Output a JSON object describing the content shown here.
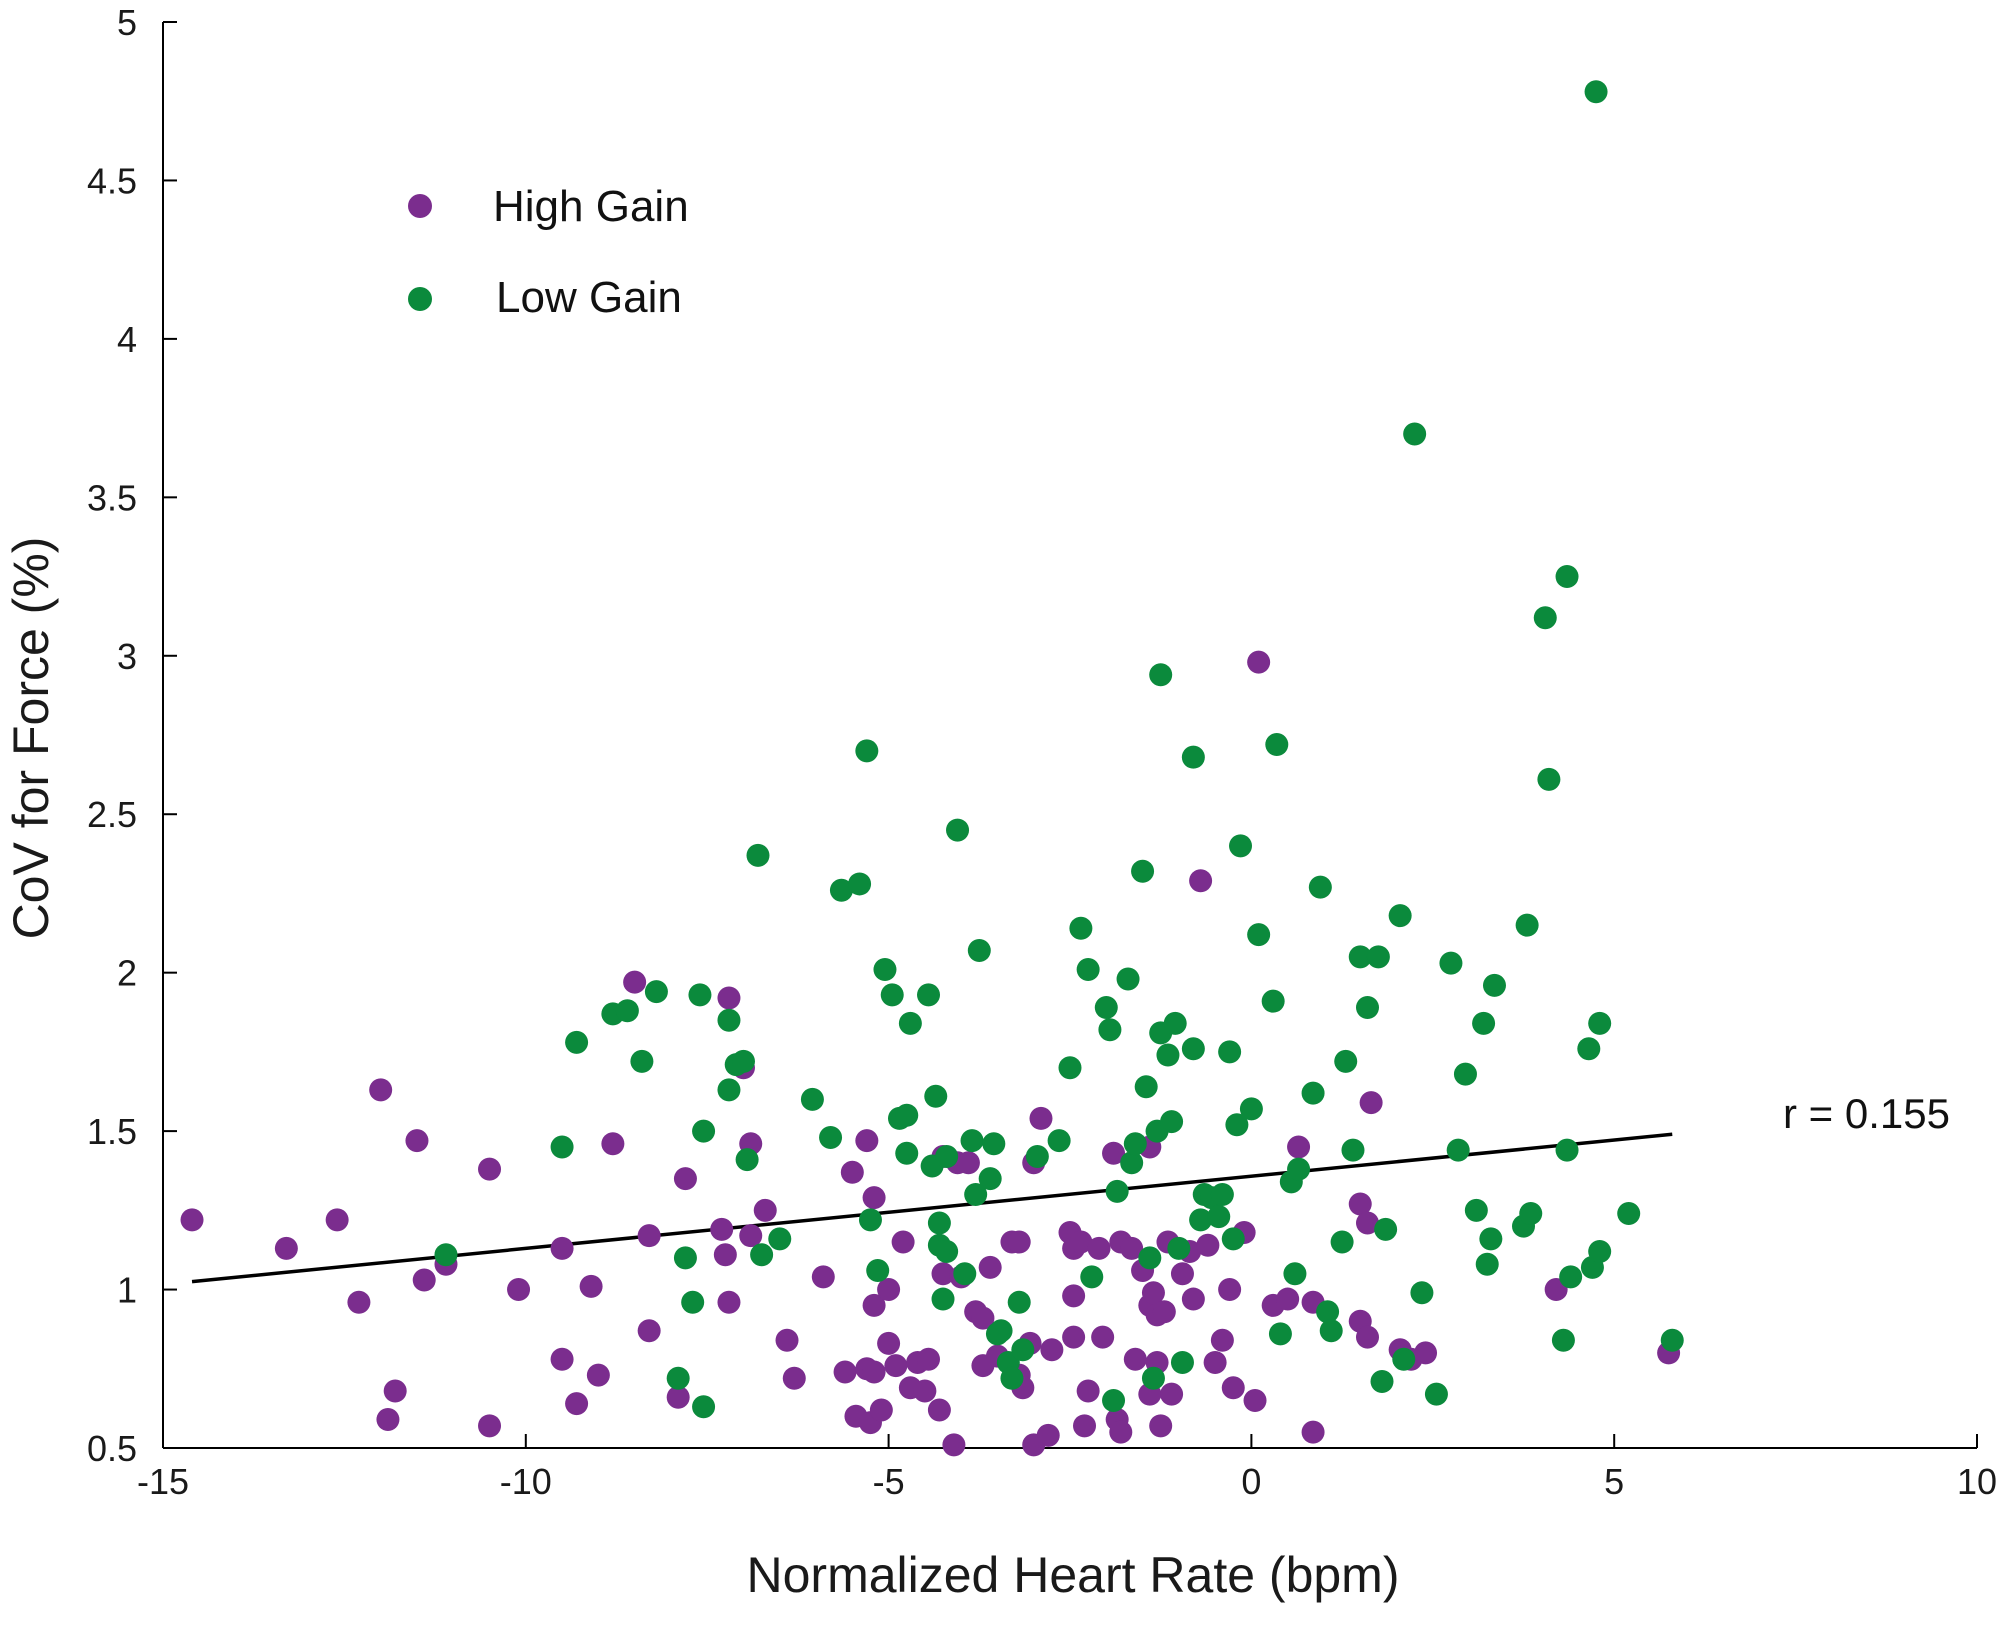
{
  "chart_data": {
    "type": "scatter",
    "title": "",
    "xlabel": "Normalized Heart Rate (bpm)",
    "ylabel": "CoV for Force (%)",
    "xlim": [
      -15,
      10
    ],
    "ylim": [
      0.5,
      5
    ],
    "xticks": [
      -15,
      -10,
      -5,
      0,
      5,
      10
    ],
    "xtick_labels": [
      "-15",
      "-10",
      "-5",
      "0",
      "5",
      "10"
    ],
    "yticks": [
      0.5,
      1,
      1.5,
      2,
      2.5,
      3,
      3.5,
      4,
      4.5,
      5
    ],
    "ytick_labels": [
      "0.5",
      "1",
      "1.5",
      "2",
      "2.5",
      "3",
      "3.5",
      "4",
      "4.5",
      "5"
    ],
    "grid": false,
    "legend": {
      "position": "top-left"
    },
    "annotation": "r = 0.155",
    "fit_line": {
      "x": [
        -14.6,
        5.8
      ],
      "y": [
        1.025,
        1.49
      ],
      "color": "#000000"
    },
    "series": [
      {
        "name": "High Gain",
        "color": "#7b2d8e",
        "points": [
          [
            -14.6,
            1.22
          ],
          [
            -13.3,
            1.13
          ],
          [
            -12.6,
            1.22
          ],
          [
            -12.3,
            0.96
          ],
          [
            -12,
            1.63
          ],
          [
            -11.9,
            0.59
          ],
          [
            -11.8,
            0.68
          ],
          [
            -11.5,
            1.47
          ],
          [
            -11.4,
            1.03
          ],
          [
            -11.1,
            1.08
          ],
          [
            -10.5,
            1.38
          ],
          [
            -10.5,
            0.57
          ],
          [
            -10.1,
            1.0
          ],
          [
            -9.5,
            1.13
          ],
          [
            -9.5,
            0.78
          ],
          [
            -9.3,
            0.64
          ],
          [
            -9.1,
            1.01
          ],
          [
            -9.0,
            0.73
          ],
          [
            -8.8,
            1.46
          ],
          [
            -8.5,
            1.97
          ],
          [
            -8.3,
            1.17
          ],
          [
            -8.3,
            0.87
          ],
          [
            -7.9,
            0.66
          ],
          [
            -7.8,
            1.35
          ],
          [
            -7.3,
            1.19
          ],
          [
            -7.25,
            1.11
          ],
          [
            -7.2,
            0.96
          ],
          [
            -7.2,
            1.92
          ],
          [
            -7.0,
            1.7
          ],
          [
            -6.9,
            1.46
          ],
          [
            -6.9,
            1.17
          ],
          [
            -6.7,
            1.25
          ],
          [
            -6.4,
            0.84
          ],
          [
            -6.3,
            0.72
          ],
          [
            -5.9,
            1.04
          ],
          [
            -5.6,
            0.74
          ],
          [
            -5.5,
            1.37
          ],
          [
            -5.45,
            0.6
          ],
          [
            -5.3,
            1.47
          ],
          [
            -5.3,
            0.75
          ],
          [
            -5.25,
            0.58
          ],
          [
            -5.2,
            1.29
          ],
          [
            -5.2,
            0.95
          ],
          [
            -5.2,
            0.74
          ],
          [
            -5.1,
            0.62
          ],
          [
            -5.0,
            1.0
          ],
          [
            -5.0,
            0.83
          ],
          [
            -4.9,
            0.76
          ],
          [
            -4.8,
            1.15
          ],
          [
            -4.7,
            0.69
          ],
          [
            -4.6,
            0.77
          ],
          [
            -4.5,
            0.68
          ],
          [
            -4.45,
            0.78
          ],
          [
            -4.3,
            0.62
          ],
          [
            -4.25,
            1.05
          ],
          [
            -4.25,
            1.42
          ],
          [
            -4.1,
            0.51
          ],
          [
            -4.05,
            1.4
          ],
          [
            -4.0,
            1.04
          ],
          [
            -3.9,
            1.4
          ],
          [
            -3.8,
            0.93
          ],
          [
            -3.7,
            0.76
          ],
          [
            -3.7,
            0.91
          ],
          [
            -3.6,
            1.07
          ],
          [
            -3.5,
            0.79
          ],
          [
            -3.3,
            1.15
          ],
          [
            -3.2,
            1.15
          ],
          [
            -3.2,
            0.73
          ],
          [
            -3.15,
            0.69
          ],
          [
            -3.05,
            0.83
          ],
          [
            -3.0,
            1.4
          ],
          [
            -3.0,
            0.51
          ],
          [
            -2.9,
            1.54
          ],
          [
            -2.8,
            0.54
          ],
          [
            -2.75,
            0.81
          ],
          [
            -2.5,
            1.18
          ],
          [
            -2.45,
            1.13
          ],
          [
            -2.45,
            0.98
          ],
          [
            -2.45,
            0.85
          ],
          [
            -2.35,
            1.15
          ],
          [
            -2.3,
            0.57
          ],
          [
            -2.25,
            0.68
          ],
          [
            -2.1,
            1.13
          ],
          [
            -2.05,
            0.85
          ],
          [
            -1.9,
            1.43
          ],
          [
            -1.85,
            0.59
          ],
          [
            -1.8,
            0.55
          ],
          [
            -1.8,
            1.15
          ],
          [
            -1.65,
            1.13
          ],
          [
            -1.6,
            0.78
          ],
          [
            -1.5,
            1.06
          ],
          [
            -1.4,
            1.45
          ],
          [
            -1.4,
            0.95
          ],
          [
            -1.4,
            0.67
          ],
          [
            -1.35,
            0.99
          ],
          [
            -1.3,
            0.77
          ],
          [
            -1.3,
            0.92
          ],
          [
            -1.25,
            0.57
          ],
          [
            -1.2,
            0.93
          ],
          [
            -1.15,
            1.15
          ],
          [
            -1.1,
            0.67
          ],
          [
            -0.95,
            1.05
          ],
          [
            -0.85,
            1.12
          ],
          [
            -0.8,
            0.97
          ],
          [
            -0.7,
            2.29
          ],
          [
            -0.6,
            1.14
          ],
          [
            -0.5,
            0.77
          ],
          [
            -0.4,
            0.84
          ],
          [
            -0.3,
            1.0
          ],
          [
            -0.25,
            0.69
          ],
          [
            -0.1,
            1.18
          ],
          [
            0.05,
            0.65
          ],
          [
            0.1,
            2.98
          ],
          [
            0.3,
            0.95
          ],
          [
            0.5,
            0.97
          ],
          [
            0.65,
            1.45
          ],
          [
            0.85,
            0.96
          ],
          [
            0.85,
            0.55
          ],
          [
            1.5,
            1.27
          ],
          [
            1.5,
            0.9
          ],
          [
            1.6,
            1.21
          ],
          [
            1.6,
            0.85
          ],
          [
            1.65,
            1.59
          ],
          [
            2.05,
            0.81
          ],
          [
            2.2,
            0.78
          ],
          [
            2.4,
            0.8
          ],
          [
            4.2,
            1.0
          ],
          [
            5.75,
            0.8
          ]
        ]
      },
      {
        "name": "Low Gain",
        "color": "#0b8a3c",
        "points": [
          [
            -11.1,
            1.11
          ],
          [
            -9.5,
            1.45
          ],
          [
            -9.3,
            1.78
          ],
          [
            -8.8,
            1.87
          ],
          [
            -8.6,
            1.88
          ],
          [
            -8.4,
            1.72
          ],
          [
            -8.2,
            1.94
          ],
          [
            -7.9,
            0.72
          ],
          [
            -7.8,
            1.1
          ],
          [
            -7.7,
            0.96
          ],
          [
            -7.6,
            1.93
          ],
          [
            -7.55,
            1.5
          ],
          [
            -7.55,
            0.63
          ],
          [
            -7.2,
            1.85
          ],
          [
            -7.2,
            1.63
          ],
          [
            -7.1,
            1.71
          ],
          [
            -7.0,
            1.72
          ],
          [
            -6.95,
            1.41
          ],
          [
            -6.8,
            2.37
          ],
          [
            -6.75,
            1.11
          ],
          [
            -6.5,
            1.16
          ],
          [
            -6.05,
            1.6
          ],
          [
            -5.8,
            1.48
          ],
          [
            -5.65,
            2.26
          ],
          [
            -5.4,
            2.28
          ],
          [
            -5.3,
            2.7
          ],
          [
            -5.25,
            1.22
          ],
          [
            -5.15,
            1.06
          ],
          [
            -5.05,
            2.01
          ],
          [
            -4.95,
            1.93
          ],
          [
            -4.85,
            1.54
          ],
          [
            -4.75,
            1.43
          ],
          [
            -4.75,
            1.55
          ],
          [
            -4.7,
            1.84
          ],
          [
            -4.45,
            1.93
          ],
          [
            -4.4,
            1.39
          ],
          [
            -4.35,
            1.61
          ],
          [
            -4.3,
            1.21
          ],
          [
            -4.3,
            1.14
          ],
          [
            -4.25,
            0.97
          ],
          [
            -4.2,
            1.12
          ],
          [
            -4.2,
            1.42
          ],
          [
            -4.05,
            2.45
          ],
          [
            -3.95,
            1.05
          ],
          [
            -3.85,
            1.47
          ],
          [
            -3.8,
            1.3
          ],
          [
            -3.75,
            2.07
          ],
          [
            -3.6,
            1.35
          ],
          [
            -3.55,
            1.46
          ],
          [
            -3.5,
            0.86
          ],
          [
            -3.45,
            0.87
          ],
          [
            -3.35,
            0.77
          ],
          [
            -3.3,
            0.72
          ],
          [
            -3.2,
            0.96
          ],
          [
            -3.15,
            0.81
          ],
          [
            -2.95,
            1.42
          ],
          [
            -2.65,
            1.47
          ],
          [
            -2.5,
            1.7
          ],
          [
            -2.35,
            2.14
          ],
          [
            -2.25,
            2.01
          ],
          [
            -2.2,
            1.04
          ],
          [
            -2.0,
            1.89
          ],
          [
            -1.95,
            1.82
          ],
          [
            -1.9,
            0.65
          ],
          [
            -1.85,
            1.31
          ],
          [
            -1.7,
            1.98
          ],
          [
            -1.65,
            1.4
          ],
          [
            -1.6,
            1.46
          ],
          [
            -1.5,
            2.32
          ],
          [
            -1.45,
            1.64
          ],
          [
            -1.4,
            1.1
          ],
          [
            -1.35,
            0.72
          ],
          [
            -1.3,
            1.5
          ],
          [
            -1.25,
            2.94
          ],
          [
            -1.25,
            1.81
          ],
          [
            -1.15,
            1.74
          ],
          [
            -1.1,
            1.53
          ],
          [
            -1.05,
            1.84
          ],
          [
            -1.0,
            1.13
          ],
          [
            -0.95,
            0.77
          ],
          [
            -0.8,
            1.76
          ],
          [
            -0.8,
            2.68
          ],
          [
            -0.7,
            1.22
          ],
          [
            -0.65,
            1.3
          ],
          [
            -0.55,
            1.29
          ],
          [
            -0.45,
            1.23
          ],
          [
            -0.4,
            1.3
          ],
          [
            -0.3,
            1.75
          ],
          [
            -0.25,
            1.16
          ],
          [
            -0.2,
            1.52
          ],
          [
            -0.15,
            2.4
          ],
          [
            0.0,
            1.57
          ],
          [
            0.1,
            2.12
          ],
          [
            0.3,
            1.91
          ],
          [
            0.35,
            2.72
          ],
          [
            0.4,
            0.86
          ],
          [
            0.55,
            1.34
          ],
          [
            0.6,
            1.05
          ],
          [
            0.65,
            1.38
          ],
          [
            0.85,
            1.62
          ],
          [
            0.95,
            2.27
          ],
          [
            1.05,
            0.93
          ],
          [
            1.1,
            0.87
          ],
          [
            1.25,
            1.15
          ],
          [
            1.3,
            1.72
          ],
          [
            1.4,
            1.44
          ],
          [
            1.5,
            2.05
          ],
          [
            1.6,
            1.89
          ],
          [
            1.75,
            2.05
          ],
          [
            1.8,
            0.71
          ],
          [
            1.85,
            1.19
          ],
          [
            2.05,
            2.18
          ],
          [
            2.1,
            0.78
          ],
          [
            2.25,
            3.7
          ],
          [
            2.35,
            0.99
          ],
          [
            2.55,
            0.67
          ],
          [
            2.75,
            2.03
          ],
          [
            2.85,
            1.44
          ],
          [
            2.95,
            1.68
          ],
          [
            3.1,
            1.25
          ],
          [
            3.2,
            1.84
          ],
          [
            3.25,
            1.08
          ],
          [
            3.3,
            1.16
          ],
          [
            3.35,
            1.96
          ],
          [
            3.75,
            1.2
          ],
          [
            3.8,
            2.15
          ],
          [
            3.85,
            1.24
          ],
          [
            4.05,
            3.12
          ],
          [
            4.1,
            2.61
          ],
          [
            4.3,
            0.84
          ],
          [
            4.35,
            1.44
          ],
          [
            4.35,
            3.25
          ],
          [
            4.4,
            1.04
          ],
          [
            4.65,
            1.76
          ],
          [
            4.7,
            1.07
          ],
          [
            4.75,
            4.78
          ],
          [
            4.8,
            1.84
          ],
          [
            4.8,
            1.12
          ],
          [
            5.2,
            1.24
          ],
          [
            5.8,
            0.84
          ]
        ]
      }
    ]
  }
}
